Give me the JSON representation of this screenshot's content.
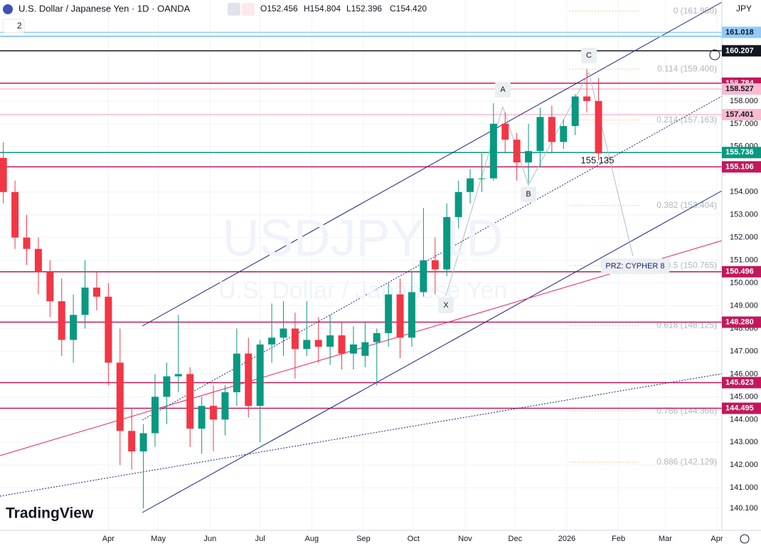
{
  "header": {
    "symbol": "U.S. Dollar / Japanese Yen · 1D · OANDA",
    "open": "O152.456",
    "high": "H154.804",
    "low": "L152.396",
    "close": "C154.420",
    "indicator_count": "2",
    "currency": "JPY"
  },
  "watermark": {
    "ticker": "USDJPY 1D",
    "name": "U.S. Dollar / Japanese Yen"
  },
  "logo": "TradingView",
  "pattern_labels": [
    "X",
    "A",
    "B",
    "C"
  ],
  "pattern_price": "155.135",
  "prz_label": "PRZ: CYPHER 8",
  "chart_data": {
    "type": "candlestick",
    "x": [
      27,
      34,
      41,
      48,
      55,
      62,
      69,
      76,
      83,
      90,
      97,
      104,
      111,
      118,
      125,
      132,
      139,
      146,
      153,
      160,
      167,
      174,
      181,
      188,
      195,
      202,
      209,
      216,
      223,
      230,
      237,
      244,
      251,
      258,
      265,
      272,
      279,
      286,
      293,
      300,
      307,
      314,
      321,
      328,
      335,
      342,
      349,
      356,
      363,
      370,
      377,
      384
    ],
    "open": [
      155.5,
      154.0,
      152.0,
      151.5,
      150.5,
      149.2,
      147.5,
      148.6,
      149.8,
      149.4,
      146.5,
      143.5,
      142.6,
      143.4,
      145.0,
      145.9,
      146.0,
      143.6,
      144.6,
      144.0,
      145.2,
      146.9,
      144.6,
      147.3,
      147.6,
      148.0,
      147.1,
      147.5,
      147.2,
      147.7,
      146.9,
      146.8,
      147.4,
      147.8,
      149.5,
      147.6,
      149.6,
      151.0,
      150.6,
      152.9,
      154.0,
      154.6,
      154.6,
      157.0,
      156.3,
      155.3,
      155.8,
      157.3,
      156.2,
      156.9,
      158.2,
      158.0
    ],
    "high": [
      156.2,
      154.5,
      153.0,
      152.0,
      151.0,
      150.2,
      149.5,
      151.0,
      150.5,
      150.0,
      148.0,
      144.5,
      143.8,
      146.0,
      146.5,
      148.6,
      146.3,
      145.0,
      145.5,
      145.5,
      148.0,
      147.6,
      147.5,
      149.1,
      149.2,
      148.7,
      149.2,
      148.5,
      148.6,
      148.3,
      148.1,
      148.3,
      148.0,
      150.0,
      150.2,
      150.5,
      153.3,
      152.0,
      153.5,
      154.5,
      155.0,
      155.7,
      157.9,
      157.5,
      156.6,
      157.0,
      157.7,
      157.8,
      157.2,
      158.3,
      159.4,
      159.0
    ],
    "low": [
      153.5,
      151.5,
      150.8,
      149.5,
      148.5,
      146.8,
      146.5,
      148.0,
      148.8,
      145.5,
      142.0,
      141.8,
      140.1,
      142.8,
      143.8,
      145.2,
      142.8,
      142.5,
      142.6,
      143.3,
      144.6,
      144.1,
      143.0,
      146.5,
      146.8,
      145.8,
      146.8,
      146.5,
      146.4,
      146.2,
      146.2,
      146.3,
      145.5,
      147.2,
      146.7,
      147.2,
      149.4,
      149.5,
      150.3,
      152.4,
      153.5,
      154.0,
      154.5,
      155.7,
      154.5,
      154.4,
      155.1,
      155.7,
      155.9,
      156.5,
      157.5,
      155.4
    ],
    "close": [
      154.0,
      152.0,
      151.5,
      150.5,
      149.2,
      147.5,
      148.6,
      149.8,
      149.4,
      146.5,
      143.5,
      142.6,
      143.4,
      145.0,
      145.9,
      146.0,
      143.6,
      144.6,
      144.0,
      145.2,
      146.9,
      144.6,
      147.3,
      147.6,
      148.0,
      147.1,
      147.5,
      147.2,
      147.7,
      146.9,
      147.3,
      147.4,
      147.8,
      149.5,
      147.6,
      149.6,
      151.0,
      150.6,
      152.9,
      154.0,
      154.6,
      154.6,
      157.0,
      156.3,
      155.3,
      155.8,
      157.3,
      156.2,
      156.9,
      158.2,
      158.0,
      155.7
    ],
    "up_color": "#089981",
    "down_color": "#f23645",
    "xlim": [
      25,
      458
    ],
    "xticks": [
      {
        "value": 90,
        "label": "Apr"
      },
      {
        "value": 120,
        "label": "May"
      },
      {
        "value": 151,
        "label": "Jun"
      },
      {
        "value": 181,
        "label": "Jul"
      },
      {
        "value": 212,
        "label": "Aug"
      },
      {
        "value": 243,
        "label": "Sep"
      },
      {
        "value": 273,
        "label": "Oct"
      },
      {
        "value": 304,
        "label": "Nov"
      },
      {
        "value": 334,
        "label": "Dec"
      },
      {
        "value": 365,
        "label": "2026"
      },
      {
        "value": 396,
        "label": "Feb"
      },
      {
        "value": 424,
        "label": "Mar"
      },
      {
        "value": 455,
        "label": "Apr"
      }
    ],
    "ylim": [
      139.13,
      162.44
    ],
    "yticks": [
      {
        "value": 158,
        "label": "158.000"
      },
      {
        "value": 157,
        "label": "157.000"
      },
      {
        "value": 156,
        "label": "156.000"
      },
      {
        "value": 155,
        "label": "155.000"
      },
      {
        "value": 154,
        "label": "154.000"
      },
      {
        "value": 153,
        "label": "153.000"
      },
      {
        "value": 152,
        "label": "152.000"
      },
      {
        "value": 151,
        "label": "151.000"
      },
      {
        "value": 150,
        "label": "150.000"
      },
      {
        "value": 149,
        "label": "149.000"
      },
      {
        "value": 148,
        "label": "148.000"
      },
      {
        "value": 147,
        "label": "147.000"
      },
      {
        "value": 146,
        "label": "146.000"
      },
      {
        "value": 145,
        "label": "145.000"
      },
      {
        "value": 144,
        "label": "144.000"
      },
      {
        "value": 143,
        "label": "143.000"
      },
      {
        "value": 142,
        "label": "142.000"
      },
      {
        "value": 141,
        "label": "141.000"
      },
      {
        "value": 140.1,
        "label": "140.100"
      }
    ],
    "grid": true,
    "levels": [
      {
        "value": 161.018,
        "color": "#90caf9",
        "text_color": "#131722"
      },
      {
        "value": 160.207,
        "color": "#131722",
        "text_color": "#ffffff"
      },
      {
        "value": 158.784,
        "color": "#c2185b",
        "text_color": "#ffffff"
      },
      {
        "value": 158.527,
        "color": "#f8bbd0",
        "text_color": "#131722"
      },
      {
        "value": 157.401,
        "color": "#f8bbd0",
        "text_color": "#131722"
      },
      {
        "value": 155.736,
        "color": "#089981",
        "text_color": "#ffffff"
      },
      {
        "value": 155.106,
        "color": "#c2185b",
        "text_color": "#ffffff"
      },
      {
        "value": 150.496,
        "color": "#c2185b",
        "text_color": "#ffffff"
      },
      {
        "value": {
          "value": 148.28,
          "label": "148.280"
        },
        "color": "#c2185b",
        "text_color": "#ffffff"
      },
      {
        "value": 145.623,
        "color": "#c2185b",
        "text_color": "#ffffff"
      },
      {
        "value": 144.495,
        "color": "#c2185b",
        "text_color": "#ffffff"
      }
    ],
    "fib_levels": [
      {
        "value": 161.95,
        "label": "0 (161.950)"
      },
      {
        "value": 159.4,
        "label": "0.114 (159.400)"
      },
      {
        "value": 157.163,
        "label": "0.214 (157.163)"
      },
      {
        "value": 153.404,
        "label": "0.382 (153.404)"
      },
      {
        "value": 150.765,
        "label": "0.5 (150.765)"
      },
      {
        "value": 148.125,
        "label": "0.618 (148.125)"
      },
      {
        "value": 144.366,
        "label": "0.786 (144.366)"
      },
      {
        "value": 142.129,
        "label": "0.886 (142.129)"
      }
    ]
  }
}
